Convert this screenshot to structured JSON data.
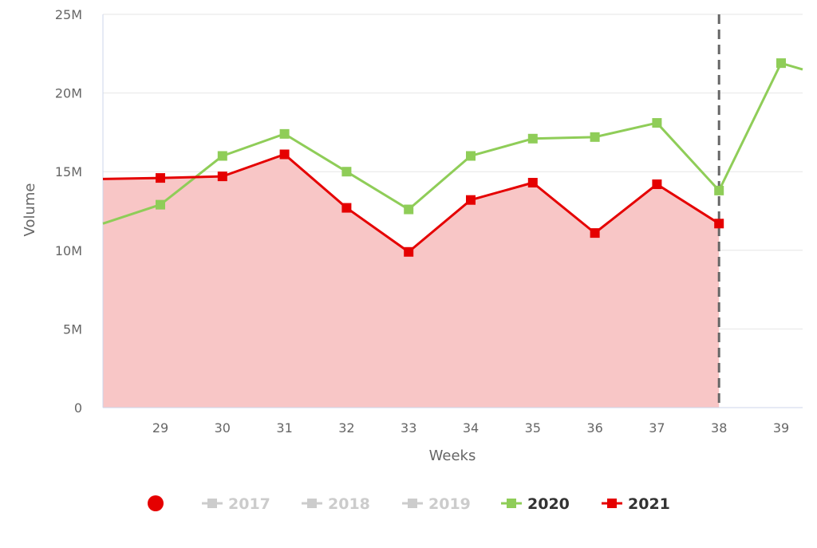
{
  "chart_data": {
    "type": "line",
    "title": "",
    "xlabel": "Weeks",
    "ylabel": "Volume",
    "x": [
      "29",
      "30",
      "31",
      "32",
      "33",
      "34",
      "35",
      "36",
      "37",
      "38",
      "39"
    ],
    "ylim": [
      0,
      25000000
    ],
    "yticks": [
      "0",
      "5M",
      "10M",
      "15M",
      "20M",
      "25M"
    ],
    "grid": true,
    "current_week_marker": "38",
    "series": [
      {
        "name": "2020",
        "color": "#8fcd58",
        "visible": true,
        "values": [
          12900000,
          16000000,
          17400000,
          15000000,
          12600000,
          16000000,
          17100000,
          17200000,
          18100000,
          13800000,
          21900000
        ]
      },
      {
        "name": "2021",
        "color": "#e50000",
        "fill": "#f8c6c6",
        "visible": true,
        "values": [
          14600000,
          14700000,
          16100000,
          12700000,
          9900000,
          13200000,
          14300000,
          11100000,
          14200000,
          11700000,
          null
        ]
      }
    ],
    "legend": {
      "placement": "bottom",
      "marker_color": "#e50000",
      "items": [
        {
          "label": "2017",
          "color": "#cccccc",
          "active": false
        },
        {
          "label": "2018",
          "color": "#cccccc",
          "active": false
        },
        {
          "label": "2019",
          "color": "#cccccc",
          "active": false
        },
        {
          "label": "2020",
          "color": "#8fcd58",
          "active": true
        },
        {
          "label": "2021",
          "color": "#e50000",
          "active": true
        }
      ]
    }
  }
}
